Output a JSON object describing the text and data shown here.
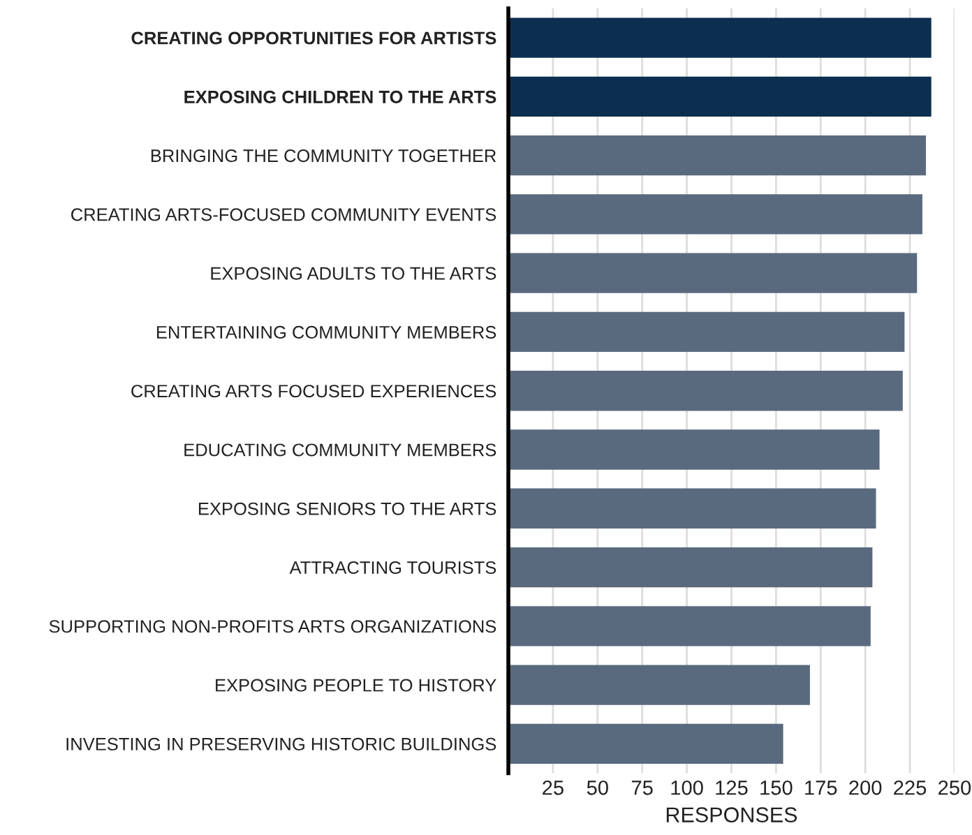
{
  "chart_data": {
    "type": "bar",
    "orientation": "horizontal",
    "xlabel": "RESPONSES",
    "categories": [
      "CREATING OPPORTUNITIES FOR ARTISTS",
      "EXPOSING CHILDREN TO THE ARTS",
      "BRINGING THE COMMUNITY TOGETHER",
      "CREATING ARTS-FOCUSED COMMUNITY EVENTS",
      "EXPOSING ADULTS TO THE ARTS",
      "ENTERTAINING COMMUNITY MEMBERS",
      "CREATING ARTS FOCUSED EXPERIENCES",
      "EDUCATING COMMUNITY MEMBERS",
      "EXPOSING SENIORS TO THE ARTS",
      "ATTRACTING TOURISTS",
      "SUPPORTING NON-PROFITS ARTS ORGANIZATIONS",
      "EXPOSING PEOPLE TO HISTORY",
      "INVESTING IN PRESERVING HISTORIC BUILDINGS"
    ],
    "values": [
      237,
      237,
      234,
      232,
      229,
      222,
      221,
      208,
      206,
      204,
      203,
      169,
      154
    ],
    "colors": [
      "#0d2f4f",
      "#0d2f4f",
      "#5a6a7e",
      "#5a6a7e",
      "#5a6a7e",
      "#5a6a7e",
      "#5a6a7e",
      "#5a6a7e",
      "#5a6a7e",
      "#5a6a7e",
      "#5a6a7e",
      "#5a6a7e",
      "#5a6a7e"
    ],
    "xlim": [
      0,
      250
    ],
    "xticks": [
      25,
      50,
      75,
      100,
      125,
      150,
      175,
      200,
      225,
      250
    ],
    "grid": "x",
    "legend": false
  }
}
